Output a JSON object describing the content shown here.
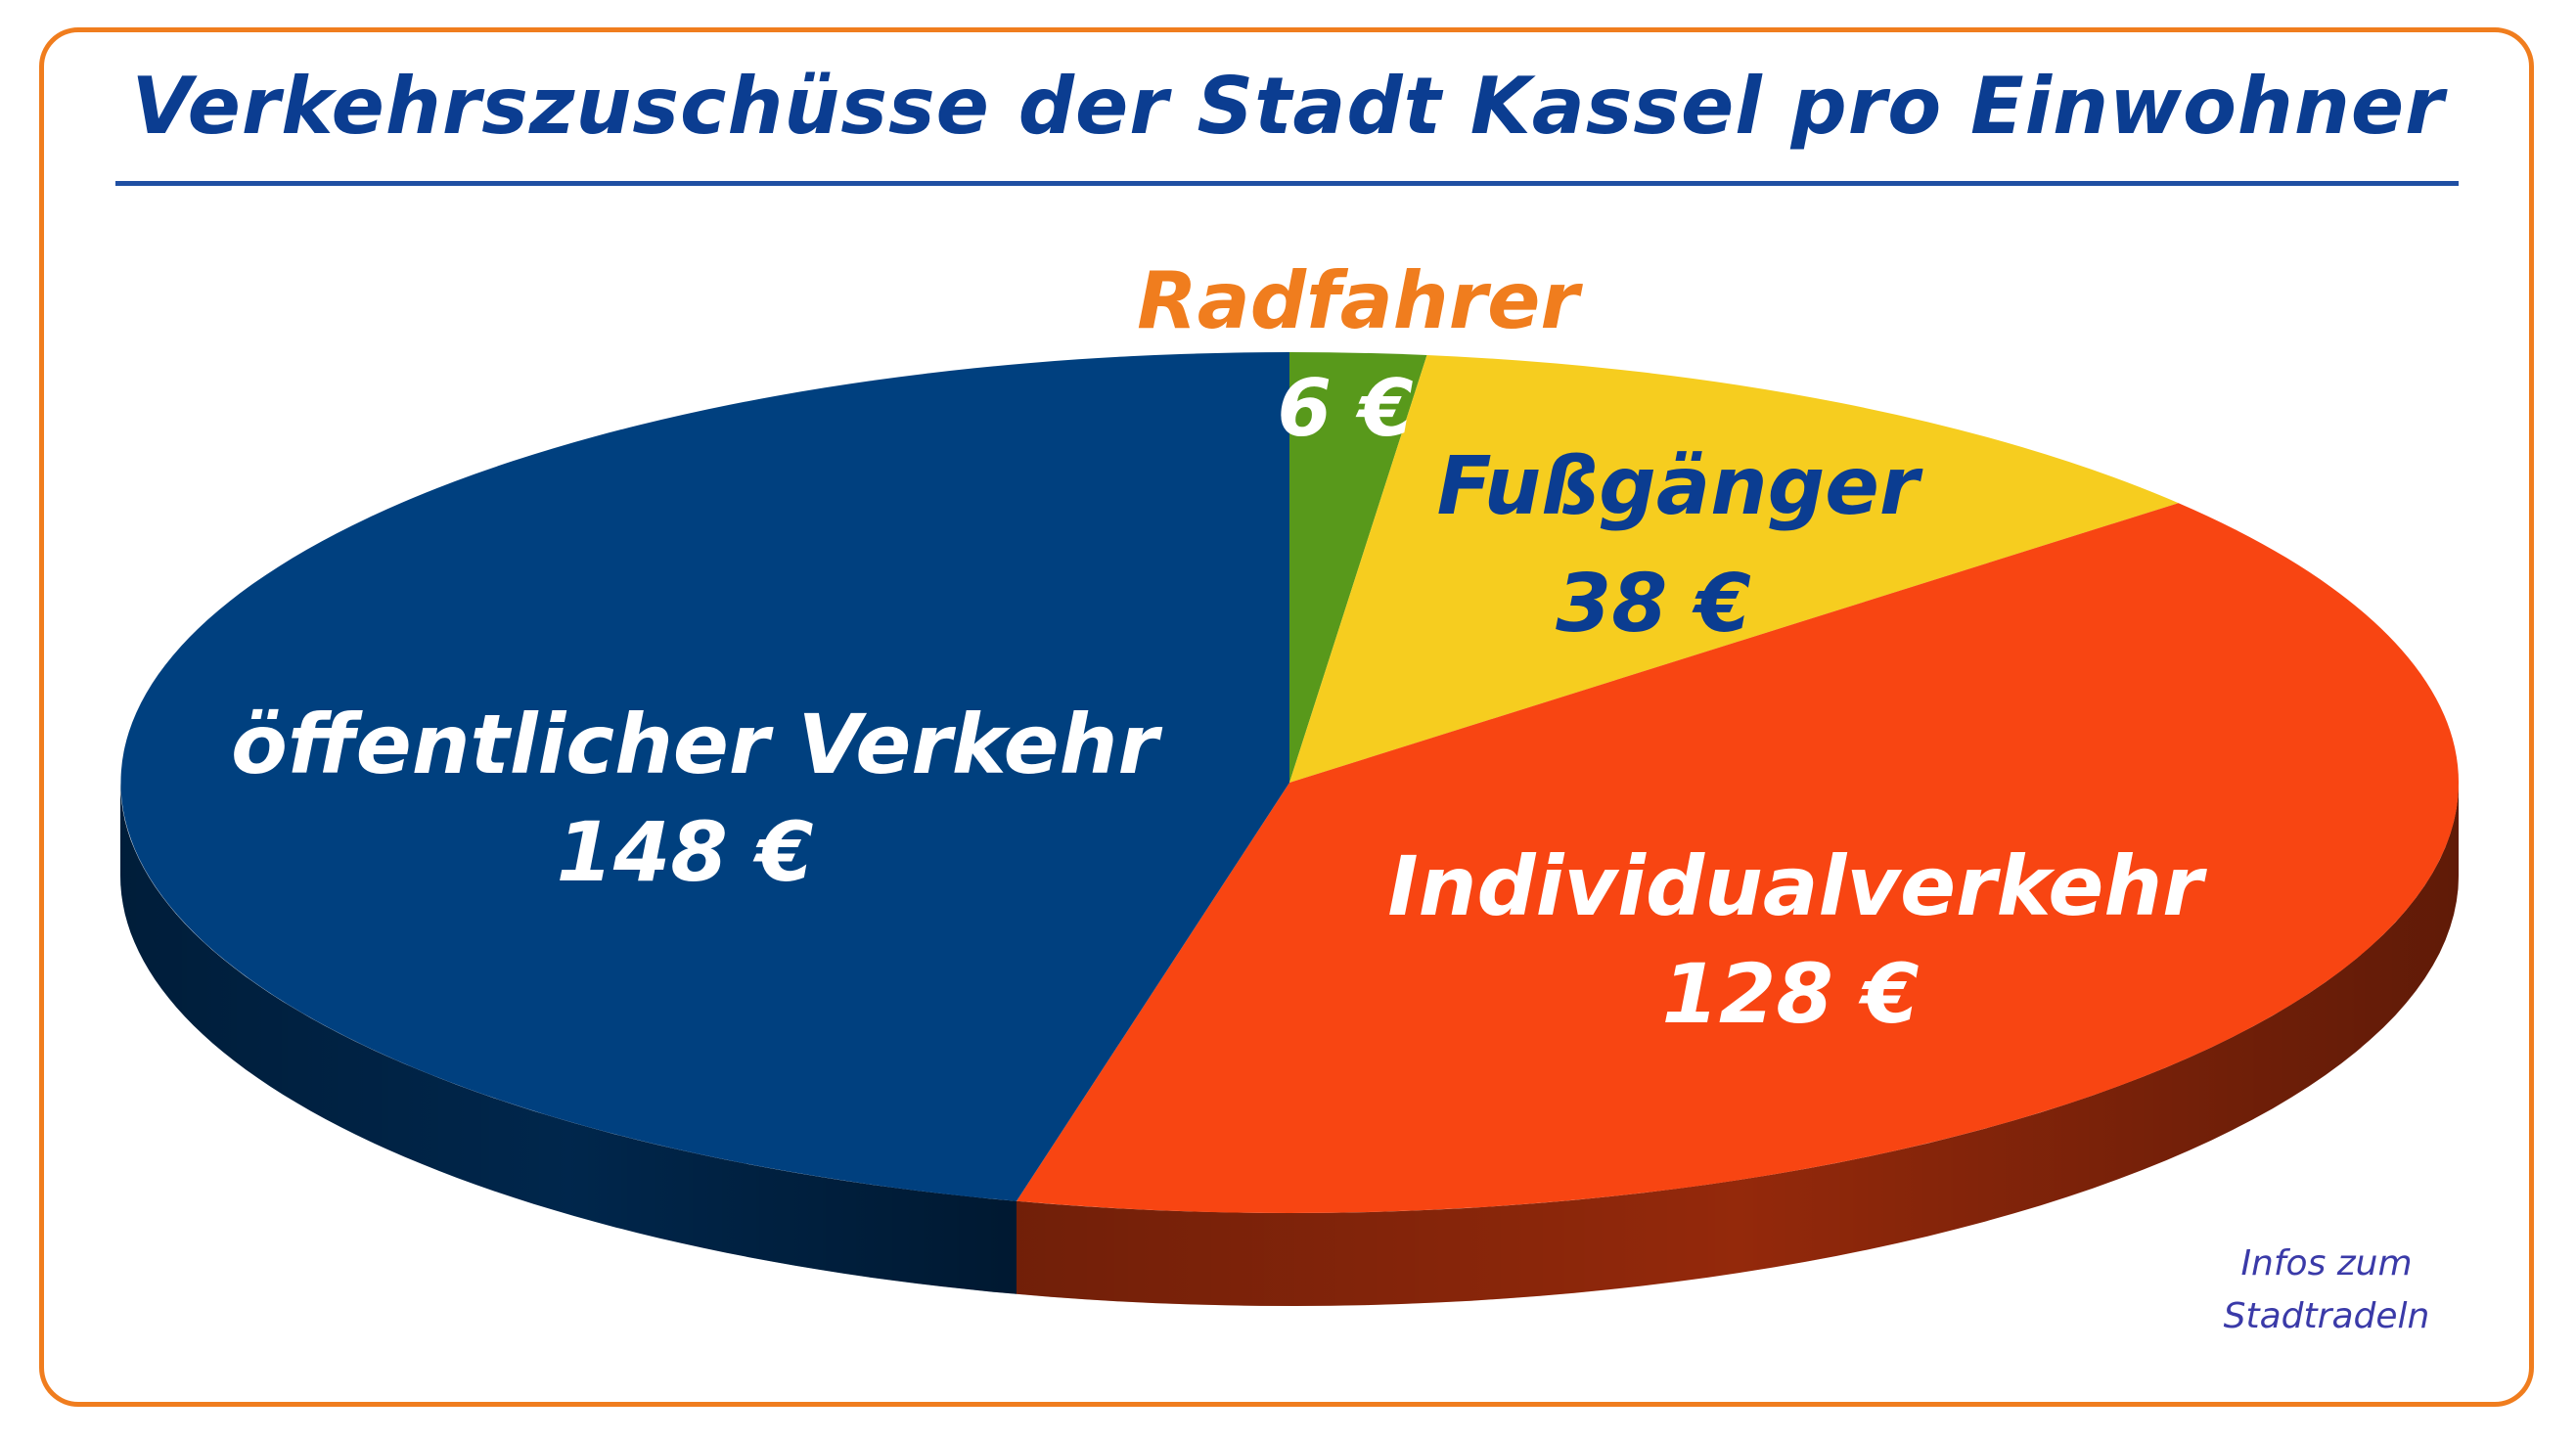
{
  "title": "Verkehrszuschüsse der Stadt Kassel pro Einwohner",
  "infos_link": {
    "line1": "Infos zum",
    "line2": "Stadtradeln"
  },
  "colors": {
    "frame": "#f07d1e",
    "title": "#0b3d91",
    "oepnv": "#00407f",
    "individual": "#f84512",
    "fuss": "#f6cd1f",
    "rad": "#58991b",
    "label_white": "#ffffff",
    "label_blue": "#0b3d91",
    "label_orange": "#f07d1e"
  },
  "chart_data": {
    "type": "pie",
    "title": "Verkehrszuschüsse der Stadt Kassel pro Einwohner",
    "unit": "€",
    "slices": [
      {
        "name": "Radfahrer",
        "value": 6,
        "label": "6 €",
        "color": "#58991b",
        "label_color": "#f07d1e",
        "value_color": "#ffffff"
      },
      {
        "name": "Fußgänger",
        "value": 38,
        "label": "38 €",
        "color": "#f6cd1f",
        "label_color": "#0b3d91",
        "value_color": "#0b3d91"
      },
      {
        "name": "Individualverkehr",
        "value": 128,
        "label": "128 €",
        "color": "#f84512",
        "label_color": "#ffffff",
        "value_color": "#ffffff"
      },
      {
        "name": "öffentlicher Verkehr",
        "value": 148,
        "label": "148 €",
        "color": "#00407f",
        "label_color": "#ffffff",
        "value_color": "#ffffff"
      }
    ]
  }
}
